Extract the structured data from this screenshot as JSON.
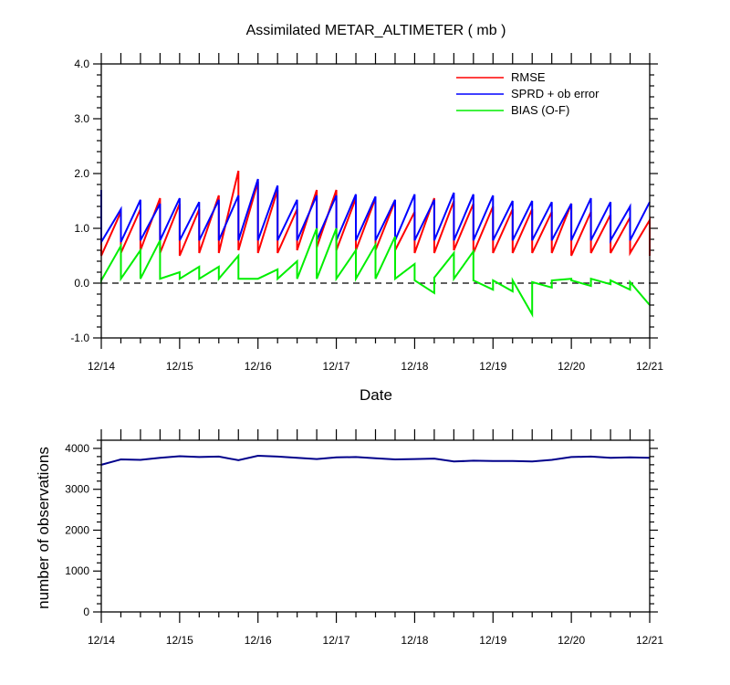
{
  "chart_data": [
    {
      "type": "line",
      "title": "Assimilated METAR_ALTIMETER ( mb )",
      "xlabel": "Date",
      "ylabel": "",
      "x_ticks": [
        "12/14",
        "12/15",
        "12/16",
        "12/17",
        "12/18",
        "12/19",
        "12/20",
        "12/21"
      ],
      "y_ticks": [
        "4.0",
        "3.0",
        "2.0",
        "1.0",
        "0.0",
        "-1.0"
      ],
      "ylim": [
        -1.0,
        4.0
      ],
      "xlim": [
        0,
        7
      ],
      "zero_line": "dashed",
      "legend_position": "top-right",
      "series": [
        {
          "name": "RMSE",
          "color": "#ff0000",
          "points": [
            [
              0.0,
              1.7
            ],
            [
              0.0,
              0.5
            ],
            [
              0.25,
              1.3
            ],
            [
              0.25,
              0.55
            ],
            [
              0.5,
              1.35
            ],
            [
              0.5,
              0.6
            ],
            [
              0.75,
              1.55
            ],
            [
              0.75,
              0.55
            ],
            [
              1.0,
              1.45
            ],
            [
              1.0,
              0.5
            ],
            [
              1.25,
              1.35
            ],
            [
              1.25,
              0.55
            ],
            [
              1.5,
              1.6
            ],
            [
              1.5,
              0.55
            ],
            [
              1.75,
              2.05
            ],
            [
              1.75,
              0.6
            ],
            [
              2.0,
              1.85
            ],
            [
              2.0,
              0.55
            ],
            [
              2.25,
              1.7
            ],
            [
              2.25,
              0.55
            ],
            [
              2.5,
              1.35
            ],
            [
              2.5,
              0.6
            ],
            [
              2.75,
              1.7
            ],
            [
              2.75,
              0.65
            ],
            [
              3.0,
              1.7
            ],
            [
              3.0,
              0.6
            ],
            [
              3.25,
              1.55
            ],
            [
              3.25,
              0.6
            ],
            [
              3.5,
              1.55
            ],
            [
              3.5,
              0.6
            ],
            [
              3.75,
              1.5
            ],
            [
              3.75,
              0.6
            ],
            [
              4.0,
              1.3
            ],
            [
              4.0,
              0.55
            ],
            [
              4.25,
              1.55
            ],
            [
              4.25,
              0.55
            ],
            [
              4.5,
              1.5
            ],
            [
              4.5,
              0.6
            ],
            [
              4.75,
              1.45
            ],
            [
              4.75,
              0.55
            ],
            [
              5.0,
              1.4
            ],
            [
              5.0,
              0.55
            ],
            [
              5.25,
              1.35
            ],
            [
              5.25,
              0.55
            ],
            [
              5.5,
              1.35
            ],
            [
              5.5,
              0.55
            ],
            [
              5.75,
              1.3
            ],
            [
              5.75,
              0.55
            ],
            [
              6.0,
              1.45
            ],
            [
              6.0,
              0.5
            ],
            [
              6.25,
              1.3
            ],
            [
              6.25,
              0.55
            ],
            [
              6.5,
              1.25
            ],
            [
              6.5,
              0.55
            ],
            [
              6.75,
              1.2
            ],
            [
              6.75,
              0.55
            ],
            [
              7.0,
              1.15
            ],
            [
              7.0,
              0.5
            ]
          ]
        },
        {
          "name": "SPRD + ob error",
          "color": "#0000ff",
          "points": [
            [
              0.0,
              1.7
            ],
            [
              0.0,
              0.75
            ],
            [
              0.25,
              1.35
            ],
            [
              0.25,
              0.75
            ],
            [
              0.5,
              1.52
            ],
            [
              0.5,
              0.78
            ],
            [
              0.75,
              1.45
            ],
            [
              0.75,
              0.78
            ],
            [
              1.0,
              1.55
            ],
            [
              1.0,
              0.78
            ],
            [
              1.25,
              1.48
            ],
            [
              1.25,
              0.78
            ],
            [
              1.5,
              1.52
            ],
            [
              1.5,
              0.78
            ],
            [
              1.75,
              1.6
            ],
            [
              1.75,
              0.78
            ],
            [
              2.0,
              1.9
            ],
            [
              2.0,
              0.78
            ],
            [
              2.25,
              1.78
            ],
            [
              2.25,
              0.78
            ],
            [
              2.5,
              1.52
            ],
            [
              2.5,
              0.78
            ],
            [
              2.75,
              1.6
            ],
            [
              2.75,
              0.78
            ],
            [
              3.0,
              1.6
            ],
            [
              3.0,
              0.78
            ],
            [
              3.25,
              1.62
            ],
            [
              3.25,
              0.78
            ],
            [
              3.5,
              1.58
            ],
            [
              3.5,
              0.78
            ],
            [
              3.75,
              1.52
            ],
            [
              3.75,
              0.78
            ],
            [
              4.0,
              1.62
            ],
            [
              4.0,
              0.78
            ],
            [
              4.25,
              1.52
            ],
            [
              4.25,
              0.78
            ],
            [
              4.5,
              1.65
            ],
            [
              4.5,
              0.78
            ],
            [
              4.75,
              1.62
            ],
            [
              4.75,
              0.78
            ],
            [
              5.0,
              1.6
            ],
            [
              5.0,
              0.78
            ],
            [
              5.25,
              1.5
            ],
            [
              5.25,
              0.78
            ],
            [
              5.5,
              1.5
            ],
            [
              5.5,
              0.78
            ],
            [
              5.75,
              1.48
            ],
            [
              5.75,
              0.78
            ],
            [
              6.0,
              1.45
            ],
            [
              6.0,
              0.78
            ],
            [
              6.25,
              1.55
            ],
            [
              6.25,
              0.78
            ],
            [
              6.5,
              1.48
            ],
            [
              6.5,
              0.78
            ],
            [
              6.75,
              1.4
            ],
            [
              6.75,
              0.78
            ],
            [
              7.0,
              1.48
            ]
          ]
        },
        {
          "name": "BIAS (O-F)",
          "color": "#00ee00",
          "points": [
            [
              0.0,
              0.1
            ],
            [
              0.0,
              0.05
            ],
            [
              0.25,
              0.68
            ],
            [
              0.25,
              0.08
            ],
            [
              0.5,
              0.6
            ],
            [
              0.5,
              0.08
            ],
            [
              0.75,
              0.78
            ],
            [
              0.75,
              0.08
            ],
            [
              1.0,
              0.2
            ],
            [
              1.0,
              0.08
            ],
            [
              1.25,
              0.3
            ],
            [
              1.25,
              0.08
            ],
            [
              1.5,
              0.3
            ],
            [
              1.5,
              0.08
            ],
            [
              1.75,
              0.5
            ],
            [
              1.75,
              0.08
            ],
            [
              2.0,
              0.08
            ],
            [
              2.25,
              0.25
            ],
            [
              2.25,
              0.08
            ],
            [
              2.5,
              0.4
            ],
            [
              2.5,
              0.08
            ],
            [
              2.75,
              1.0
            ],
            [
              2.75,
              0.08
            ],
            [
              3.0,
              1.0
            ],
            [
              3.0,
              0.08
            ],
            [
              3.25,
              0.6
            ],
            [
              3.25,
              0.08
            ],
            [
              3.5,
              0.7
            ],
            [
              3.5,
              0.08
            ],
            [
              3.75,
              0.85
            ],
            [
              3.75,
              0.08
            ],
            [
              4.0,
              0.35
            ],
            [
              4.0,
              0.05
            ],
            [
              4.25,
              -0.18
            ],
            [
              4.25,
              0.1
            ],
            [
              4.5,
              0.55
            ],
            [
              4.5,
              0.08
            ],
            [
              4.75,
              0.58
            ],
            [
              4.75,
              0.05
            ],
            [
              5.0,
              -0.12
            ],
            [
              5.0,
              0.05
            ],
            [
              5.25,
              -0.15
            ],
            [
              5.25,
              0.05
            ],
            [
              5.5,
              -0.57
            ],
            [
              5.5,
              0.02
            ],
            [
              5.75,
              -0.08
            ],
            [
              5.75,
              0.05
            ],
            [
              6.0,
              0.08
            ],
            [
              6.0,
              0.05
            ],
            [
              6.25,
              -0.05
            ],
            [
              6.25,
              0.08
            ],
            [
              6.5,
              -0.02
            ],
            [
              6.5,
              0.05
            ],
            [
              6.75,
              -0.12
            ],
            [
              6.75,
              0.02
            ],
            [
              7.0,
              -0.4
            ]
          ]
        }
      ]
    },
    {
      "type": "line",
      "title": "",
      "xlabel": "",
      "ylabel": "number of observations",
      "x_ticks": [
        "12/14",
        "12/15",
        "12/16",
        "12/17",
        "12/18",
        "12/19",
        "12/20",
        "12/21"
      ],
      "y_ticks": [
        "4000",
        "3000",
        "2000",
        "1000",
        "0"
      ],
      "ylim": [
        0,
        4200
      ],
      "xlim": [
        0,
        7
      ],
      "series": [
        {
          "name": "",
          "color": "#00008b",
          "points": [
            [
              0.0,
              3600
            ],
            [
              0.25,
              3730
            ],
            [
              0.5,
              3720
            ],
            [
              0.75,
              3770
            ],
            [
              1.0,
              3810
            ],
            [
              1.25,
              3790
            ],
            [
              1.5,
              3800
            ],
            [
              1.75,
              3710
            ],
            [
              2.0,
              3820
            ],
            [
              2.25,
              3800
            ],
            [
              2.5,
              3770
            ],
            [
              2.75,
              3740
            ],
            [
              3.0,
              3780
            ],
            [
              3.25,
              3790
            ],
            [
              3.5,
              3760
            ],
            [
              3.75,
              3730
            ],
            [
              4.0,
              3740
            ],
            [
              4.25,
              3750
            ],
            [
              4.5,
              3680
            ],
            [
              4.75,
              3700
            ],
            [
              5.0,
              3690
            ],
            [
              5.25,
              3690
            ],
            [
              5.5,
              3680
            ],
            [
              5.75,
              3720
            ],
            [
              6.0,
              3790
            ],
            [
              6.25,
              3800
            ],
            [
              6.5,
              3770
            ],
            [
              6.75,
              3780
            ],
            [
              7.0,
              3770
            ]
          ]
        }
      ]
    }
  ]
}
